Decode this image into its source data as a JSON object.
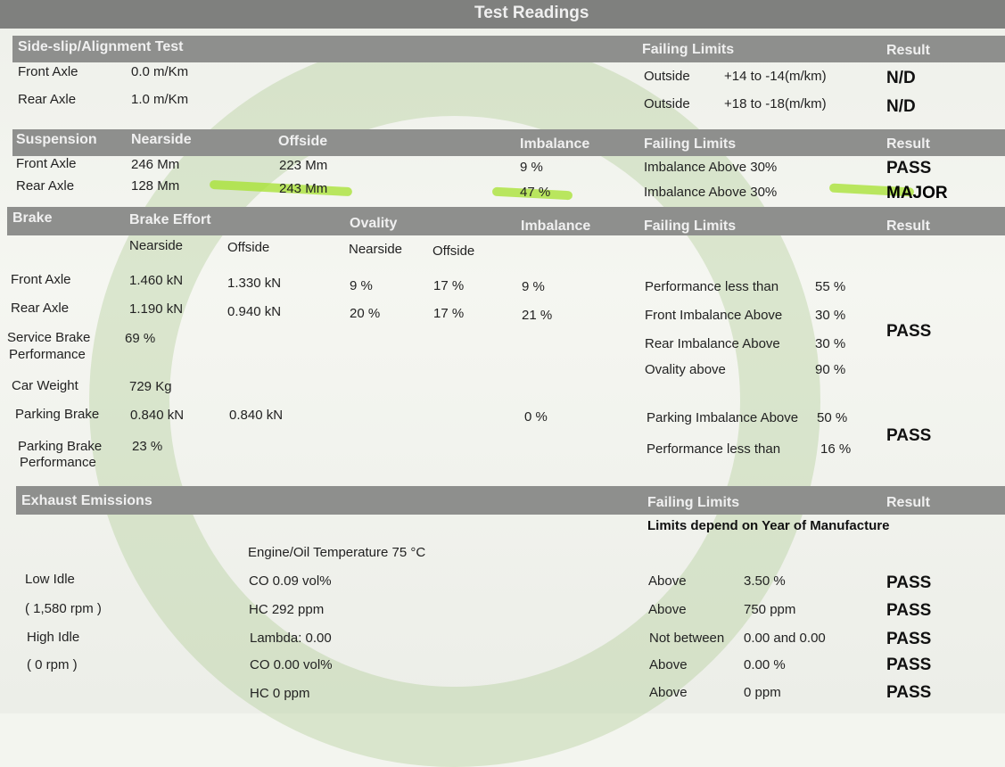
{
  "title": "Test Readings",
  "highlight_color": "#a6e22e",
  "sideslip": {
    "header": "Side-slip/Alignment Test",
    "limits_header": "Failing Limits",
    "result_header": "Result",
    "rows": [
      {
        "label": "Front Axle",
        "value": "0.0 m/Km",
        "limit_type": "Outside",
        "limit": "+14 to -14(m/km)",
        "result": "N/D"
      },
      {
        "label": "Rear Axle",
        "value": "1.0 m/Km",
        "limit_type": "Outside",
        "limit": "+18 to -18(m/km)",
        "result": "N/D"
      }
    ]
  },
  "suspension": {
    "header": "Suspension",
    "nearside": "Nearside",
    "offside": "Offside",
    "imbalance": "Imbalance",
    "limits_header": "Failing Limits",
    "result_header": "Result",
    "rows": [
      {
        "label": "Front Axle",
        "near": "246 Mm",
        "off": "223 Mm",
        "imb": "9 %",
        "limit": "Imbalance Above  30%",
        "result": "PASS"
      },
      {
        "label": "Rear Axle",
        "near": "128 Mm",
        "off": "243 Mm",
        "imb": "47 %",
        "limit": "Imbalance Above  30%",
        "result": "MAJOR"
      }
    ]
  },
  "brake": {
    "header": "Brake",
    "effort": "Brake Effort",
    "ovality": "Ovality",
    "imbalance": "Imbalance",
    "limits_header": "Failing Limits",
    "result_header": "Result",
    "nearside": "Nearside",
    "offside": "Offside",
    "front": {
      "label": "Front Axle",
      "en": "1.460 kN",
      "eo": "1.330 kN",
      "on": "9 %",
      "oo": "17 %",
      "imb": "9 %"
    },
    "rear": {
      "label": "Rear Axle",
      "en": "1.190 kN",
      "eo": "0.940 kN",
      "on": "20 %",
      "oo": "17 %",
      "imb": "21 %"
    },
    "service": {
      "label1": "Service Brake",
      "label2": "Performance",
      "value": "69 %"
    },
    "weight": {
      "label": "Car Weight",
      "value": "729 Kg"
    },
    "parking": {
      "label": "Parking Brake",
      "near": "0.840 kN",
      "off": "0.840 kN",
      "imb": "0 %"
    },
    "parking_perf": {
      "label1": "Parking Brake",
      "label2": "Performance",
      "value": "23 %"
    },
    "limits": [
      {
        "label": "Performance less than",
        "value": "55 %"
      },
      {
        "label": "Front Imbalance Above",
        "value": "30 %"
      },
      {
        "label": "Rear Imbalance Above",
        "value": "30 %"
      },
      {
        "label": "Ovality above",
        "value": "90 %"
      },
      {
        "label": "Parking Imbalance Above",
        "value": "50 %"
      },
      {
        "label": "Performance less than",
        "value": "16 %"
      }
    ],
    "result1": "PASS",
    "result2": "PASS"
  },
  "exhaust": {
    "header": "Exhaust Emissions",
    "limits_header": "Failing Limits",
    "result_header": "Result",
    "note": "Limits depend on Year of Manufacture",
    "temp": "Engine/Oil Temperature 75 °C",
    "labels": [
      "Low Idle",
      "( 1,580 rpm )",
      "High Idle",
      "( 0 rpm )"
    ],
    "rows": [
      {
        "reading": "CO 0.09 vol%",
        "type": "Above",
        "limit": "3.50 %",
        "result": "PASS"
      },
      {
        "reading": "HC 292 ppm",
        "type": "Above",
        "limit": "750 ppm",
        "result": "PASS"
      },
      {
        "reading": "Lambda: 0.00",
        "type": "Not between",
        "limit": "0.00 and 0.00",
        "result": "PASS"
      },
      {
        "reading": "CO 0.00 vol%",
        "type": "Above",
        "limit": "0.00 %",
        "result": "PASS"
      },
      {
        "reading": "HC 0 ppm",
        "type": "Above",
        "limit": "0 ppm",
        "result": "PASS"
      }
    ]
  }
}
